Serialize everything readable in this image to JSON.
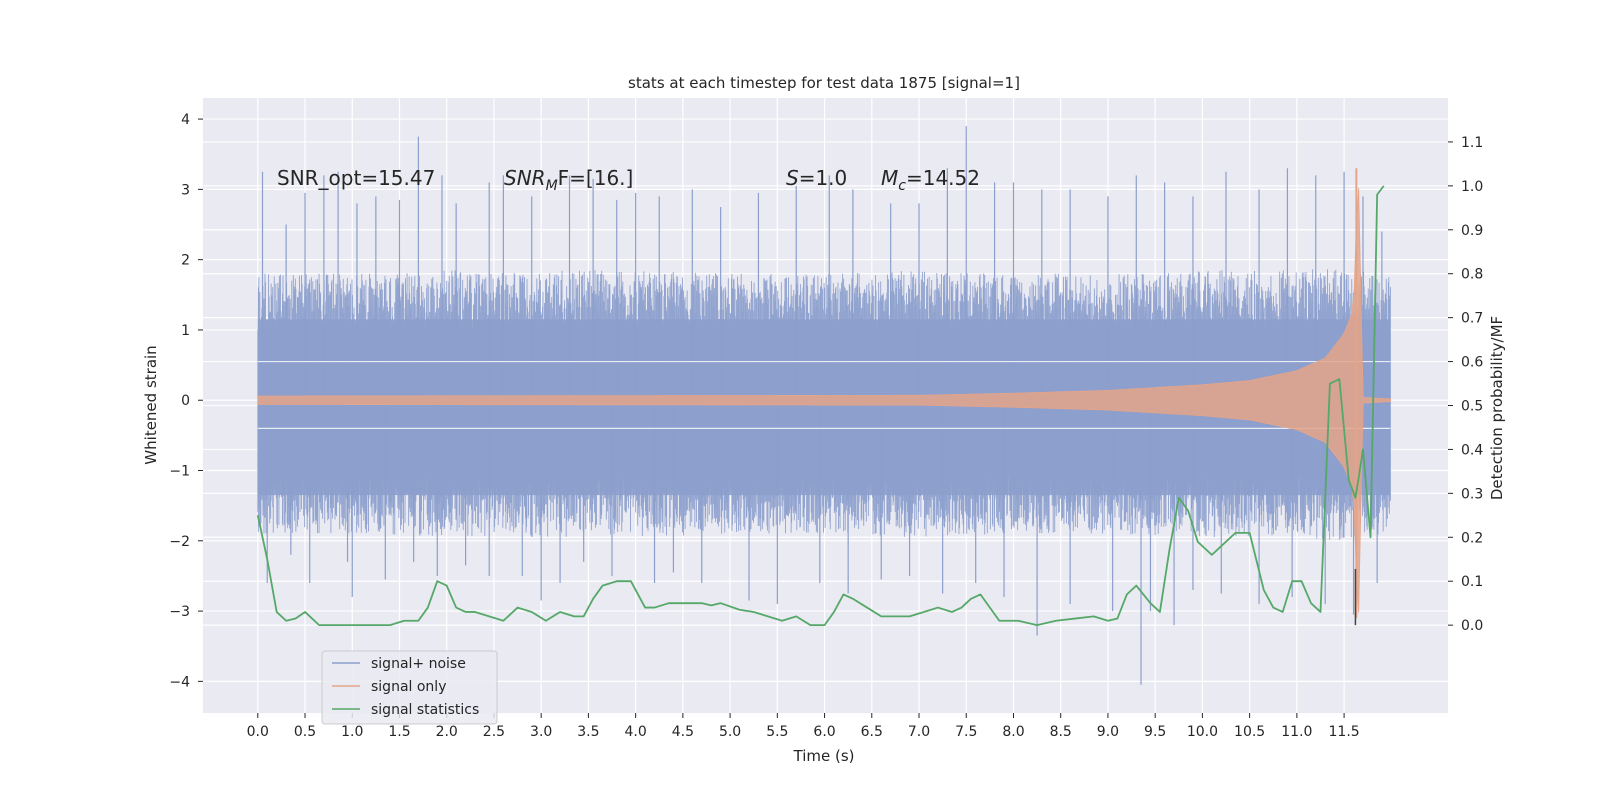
{
  "chart_data": {
    "type": "line",
    "title": "stats at each timestep for test data 1875 [signal=1]",
    "xlabel": "Time (s)",
    "ylabel": "Whitened strain",
    "ylabel_right": "Detection probability/MF",
    "xlim": [
      -0.58,
      12.6
    ],
    "ylim": [
      -4.45,
      4.3
    ],
    "ylim_right": [
      -0.2,
      1.2
    ],
    "x_ticks": [
      0.0,
      0.5,
      1.0,
      1.5,
      2.0,
      2.5,
      3.0,
      3.5,
      4.0,
      4.5,
      5.0,
      5.5,
      6.0,
      6.5,
      7.0,
      7.5,
      8.0,
      8.5,
      9.0,
      9.5,
      10.0,
      10.5,
      11.0,
      11.5
    ],
    "x_tick_labels": [
      "0.0",
      "0.5",
      "1.0",
      "1.5",
      "2.0",
      "2.5",
      "3.0",
      "3.5",
      "4.0",
      "4.5",
      "5.0",
      "5.5",
      "6.0",
      "6.5",
      "7.0",
      "7.5",
      "8.0",
      "8.5",
      "9.0",
      "9.5",
      "10.0",
      "10.5",
      "11.0",
      "11.5"
    ],
    "y_ticks": [
      4,
      3,
      2,
      1,
      0,
      -1,
      -2,
      -3,
      -4
    ],
    "y_tick_labels": [
      "4",
      "3",
      "2",
      "1",
      "0",
      "−1",
      "−2",
      "−3",
      "−4"
    ],
    "y_right_ticks": [
      1.1,
      1.0,
      0.9,
      0.8,
      0.7,
      0.6,
      0.5,
      0.4,
      0.3,
      0.2,
      0.1,
      0.0
    ],
    "y_right_tick_labels": [
      "1.1",
      "1.0",
      "0.9",
      "0.8",
      "0.7",
      "0.6",
      "0.5",
      "0.4",
      "0.3",
      "0.2",
      "0.1",
      "0.0"
    ],
    "grid": true,
    "legend_position": "lower-left",
    "annotations": {
      "snr_opt": "SNR_opt=15.47",
      "snr_mf_main": "SNR",
      "snr_mf_sub": "M",
      "snr_mf_tail": "F=[16.]",
      "s_main": "S",
      "s_tail": "=1.0",
      "mc_main": "M",
      "mc_sub": "c",
      "mc_tail": "=14.52"
    },
    "series": [
      {
        "name": "signal+ noise",
        "color": "#8c9fcc",
        "axis": "left",
        "style": "noise-band",
        "x_range": [
          0.0,
          11.99
        ],
        "envelope": {
          "x": [
            0.0,
            1.0,
            2.0,
            3.0,
            4.0,
            5.0,
            6.0,
            7.0,
            8.0,
            9.0,
            10.0,
            11.0,
            11.5,
            11.99
          ],
          "upper_typical": [
            1.8,
            1.8,
            1.85,
            1.85,
            1.85,
            1.8,
            1.8,
            1.85,
            1.8,
            1.8,
            1.85,
            1.85,
            1.9,
            1.75
          ],
          "lower_typical": [
            -1.9,
            -1.9,
            -1.95,
            -1.95,
            -1.95,
            -1.9,
            -1.9,
            -1.95,
            -1.9,
            -1.9,
            -1.95,
            -1.95,
            -2.0,
            -1.9
          ]
        },
        "peaks": [
          [
            0.05,
            3.25
          ],
          [
            0.3,
            2.5
          ],
          [
            0.5,
            2.95
          ],
          [
            0.7,
            3.2
          ],
          [
            0.85,
            3.25
          ],
          [
            1.05,
            2.8
          ],
          [
            1.25,
            2.9
          ],
          [
            1.5,
            2.85
          ],
          [
            1.7,
            3.75
          ],
          [
            1.95,
            3.2
          ],
          [
            2.1,
            2.8
          ],
          [
            2.45,
            3.1
          ],
          [
            2.6,
            3.2
          ],
          [
            2.9,
            2.9
          ],
          [
            3.3,
            3.2
          ],
          [
            3.55,
            3.15
          ],
          [
            3.8,
            2.85
          ],
          [
            4.0,
            2.95
          ],
          [
            4.25,
            2.9
          ],
          [
            4.6,
            3.0
          ],
          [
            4.9,
            2.75
          ],
          [
            5.3,
            2.95
          ],
          [
            5.7,
            3.05
          ],
          [
            6.05,
            3.2
          ],
          [
            6.3,
            3.0
          ],
          [
            6.7,
            2.8
          ],
          [
            7.0,
            2.8
          ],
          [
            7.3,
            3.3
          ],
          [
            7.5,
            3.9
          ],
          [
            7.8,
            3.1
          ],
          [
            8.0,
            3.1
          ],
          [
            8.3,
            3.0
          ],
          [
            8.6,
            3.0
          ],
          [
            9.0,
            2.9
          ],
          [
            9.3,
            3.2
          ],
          [
            9.6,
            3.1
          ],
          [
            9.9,
            2.9
          ],
          [
            10.25,
            3.25
          ],
          [
            10.6,
            3.0
          ],
          [
            10.9,
            3.3
          ],
          [
            11.2,
            3.2
          ],
          [
            11.5,
            3.25
          ],
          [
            11.7,
            2.9
          ],
          [
            11.9,
            2.4
          ]
        ],
        "troughs": [
          [
            0.1,
            -2.6
          ],
          [
            0.35,
            -2.2
          ],
          [
            0.55,
            -2.6
          ],
          [
            0.95,
            -2.3
          ],
          [
            1.0,
            -2.8
          ],
          [
            1.35,
            -2.55
          ],
          [
            1.65,
            -2.3
          ],
          [
            1.9,
            -2.5
          ],
          [
            2.2,
            -2.35
          ],
          [
            2.45,
            -2.5
          ],
          [
            2.8,
            -2.5
          ],
          [
            3.0,
            -2.85
          ],
          [
            3.2,
            -2.6
          ],
          [
            3.45,
            -2.3
          ],
          [
            3.75,
            -2.5
          ],
          [
            4.2,
            -2.6
          ],
          [
            4.4,
            -2.45
          ],
          [
            4.7,
            -2.6
          ],
          [
            5.2,
            -2.85
          ],
          [
            5.5,
            -2.9
          ],
          [
            5.95,
            -2.6
          ],
          [
            6.25,
            -2.75
          ],
          [
            6.6,
            -2.55
          ],
          [
            6.9,
            -2.5
          ],
          [
            7.25,
            -2.75
          ],
          [
            7.6,
            -2.6
          ],
          [
            7.9,
            -2.8
          ],
          [
            8.25,
            -3.35
          ],
          [
            8.6,
            -2.9
          ],
          [
            9.05,
            -3.0
          ],
          [
            9.35,
            -4.05
          ],
          [
            9.45,
            -3.0
          ],
          [
            9.7,
            -3.2
          ],
          [
            9.9,
            -2.7
          ],
          [
            10.2,
            -2.75
          ],
          [
            10.6,
            -2.9
          ],
          [
            10.95,
            -2.8
          ],
          [
            11.3,
            -2.9
          ],
          [
            11.6,
            -3.05
          ],
          [
            11.85,
            -2.6
          ]
        ]
      },
      {
        "name": "signal only",
        "color": "#e4a48a",
        "axis": "left",
        "style": "chirp",
        "x_range": [
          0.0,
          11.99
        ],
        "envelope": {
          "x": [
            0.0,
            7.0,
            8.0,
            9.0,
            10.0,
            10.5,
            11.0,
            11.3,
            11.5,
            11.6,
            11.65,
            11.7,
            11.99
          ],
          "amplitude": [
            0.06,
            0.07,
            0.1,
            0.14,
            0.22,
            0.28,
            0.42,
            0.6,
            0.95,
            1.3,
            3.3,
            0.04,
            0.02
          ]
        }
      },
      {
        "name": "signal statistics",
        "color": "#55a868",
        "axis": "right",
        "style": "line",
        "x": [
          0.0,
          0.1,
          0.2,
          0.3,
          0.4,
          0.5,
          0.65,
          0.8,
          1.0,
          1.2,
          1.4,
          1.55,
          1.7,
          1.8,
          1.9,
          2.0,
          2.1,
          2.2,
          2.3,
          2.45,
          2.6,
          2.75,
          2.9,
          3.05,
          3.2,
          3.35,
          3.45,
          3.55,
          3.65,
          3.8,
          3.95,
          4.1,
          4.2,
          4.35,
          4.5,
          4.7,
          4.8,
          4.9,
          5.1,
          5.25,
          5.4,
          5.55,
          5.7,
          5.85,
          6.0,
          6.1,
          6.2,
          6.3,
          6.45,
          6.6,
          6.75,
          6.9,
          7.05,
          7.2,
          7.35,
          7.45,
          7.55,
          7.65,
          7.85,
          8.05,
          8.25,
          8.45,
          8.65,
          8.85,
          9.0,
          9.1,
          9.2,
          9.3,
          9.45,
          9.55,
          9.65,
          9.75,
          9.85,
          9.95,
          10.1,
          10.2,
          10.35,
          10.5,
          10.65,
          10.75,
          10.85,
          10.95,
          11.05,
          11.15,
          11.25,
          11.35,
          11.45,
          11.55,
          11.62,
          11.65,
          11.7,
          11.78,
          11.85,
          11.92
        ],
        "values": [
          0.25,
          0.15,
          0.03,
          0.01,
          0.015,
          0.03,
          0.0,
          0.0,
          0.0,
          0.0,
          0.0,
          0.01,
          0.01,
          0.04,
          0.1,
          0.09,
          0.04,
          0.03,
          0.03,
          0.02,
          0.01,
          0.04,
          0.03,
          0.01,
          0.03,
          0.02,
          0.02,
          0.06,
          0.09,
          0.1,
          0.1,
          0.04,
          0.04,
          0.05,
          0.05,
          0.05,
          0.045,
          0.05,
          0.035,
          0.03,
          0.02,
          0.01,
          0.02,
          0.0,
          0.0,
          0.03,
          0.07,
          0.06,
          0.04,
          0.02,
          0.02,
          0.02,
          0.03,
          0.04,
          0.03,
          0.04,
          0.06,
          0.07,
          0.01,
          0.01,
          0.0,
          0.01,
          0.015,
          0.02,
          0.01,
          0.015,
          0.07,
          0.09,
          0.05,
          0.03,
          0.17,
          0.29,
          0.26,
          0.19,
          0.16,
          0.18,
          0.21,
          0.21,
          0.08,
          0.04,
          0.03,
          0.1,
          0.1,
          0.05,
          0.03,
          0.55,
          0.56,
          0.33,
          0.29,
          0.33,
          0.4,
          0.2,
          0.98,
          1.0
        ]
      }
    ]
  }
}
